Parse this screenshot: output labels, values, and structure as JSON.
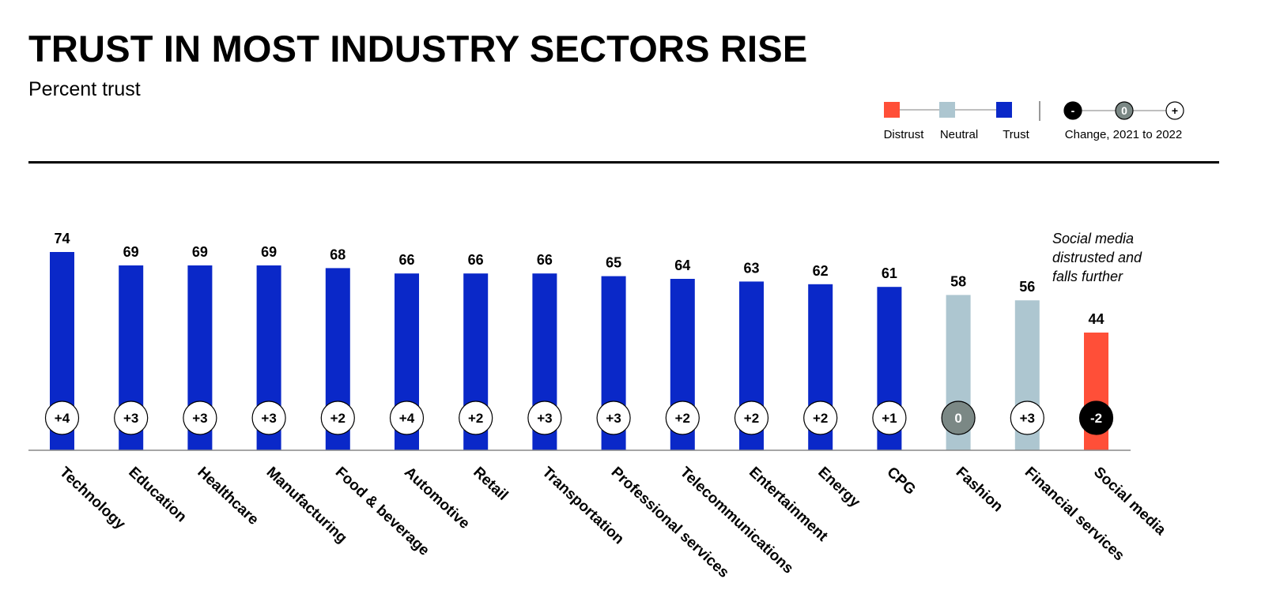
{
  "header": {
    "title": "TRUST IN MOST INDUSTRY SECTORS RISE",
    "subtitle": "Percent trust"
  },
  "legend": {
    "categories": [
      {
        "label": "Distrust",
        "color": "#ff4f38"
      },
      {
        "label": "Neutral",
        "color": "#adc6d0"
      },
      {
        "label": "Trust",
        "color": "#0a28c8"
      }
    ],
    "change_markers": [
      {
        "symbol": "-",
        "fill": "#000000",
        "text_color": "#ffffff"
      },
      {
        "symbol": "0",
        "fill": "#7b8885",
        "text_color": "#ffffff"
      },
      {
        "symbol": "+",
        "fill": "#ffffff",
        "text_color": "#000000"
      }
    ],
    "change_label": "Change, 2021 to 2022"
  },
  "annotation": {
    "lines": [
      "Social media",
      "distrusted and",
      "falls further"
    ]
  },
  "chart_data": {
    "type": "bar",
    "title": "TRUST IN MOST INDUSTRY SECTORS RISE",
    "subtitle": "Percent trust",
    "ylim": [
      0,
      100
    ],
    "categories": [
      "Technology",
      "Education",
      "Healthcare",
      "Manufacturing",
      "Food & beverage",
      "Automotive",
      "Retail",
      "Transportation",
      "Professional services",
      "Telecommunications",
      "Entertainment",
      "Energy",
      "CPG",
      "Fashion",
      "Financial services",
      "Social media"
    ],
    "values": [
      74,
      69,
      69,
      69,
      68,
      66,
      66,
      66,
      65,
      64,
      63,
      62,
      61,
      58,
      56,
      44
    ],
    "value_labels": [
      "74",
      "69",
      "69",
      "69",
      "68",
      "66",
      "66",
      "66",
      "65",
      "64",
      "63",
      "62",
      "61",
      "58",
      "56",
      "44"
    ],
    "change_labels": [
      "+4",
      "+3",
      "+3",
      "+3",
      "+2",
      "+4",
      "+2",
      "+3",
      "+3",
      "+2",
      "+2",
      "+2",
      "+1",
      "0",
      "+3",
      "-2"
    ],
    "status": [
      "trust",
      "trust",
      "trust",
      "trust",
      "trust",
      "trust",
      "trust",
      "trust",
      "trust",
      "trust",
      "trust",
      "trust",
      "trust",
      "neutral",
      "neutral",
      "distrust"
    ],
    "colors": {
      "trust": "#0a28c8",
      "neutral": "#adc6d0",
      "distrust": "#ff4f38",
      "baseline": "#888888"
    }
  }
}
